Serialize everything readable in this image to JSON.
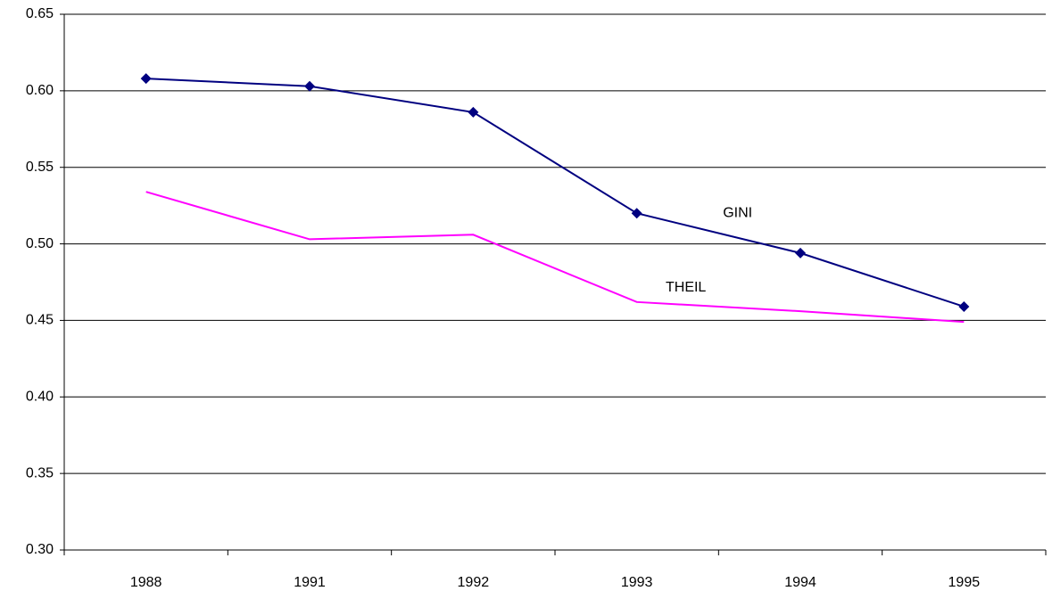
{
  "chart_data": {
    "type": "line",
    "categories": [
      "1988",
      "1991",
      "1992",
      "1993",
      "1994",
      "1995"
    ],
    "series": [
      {
        "name": "GINI",
        "color": "#000080",
        "marker": "diamond",
        "values": [
          0.608,
          0.603,
          0.586,
          0.52,
          0.494,
          0.459
        ]
      },
      {
        "name": "THEIL",
        "color": "#ff00ff",
        "marker": "none",
        "values": [
          0.534,
          0.503,
          0.506,
          0.462,
          0.456,
          0.449
        ]
      }
    ],
    "ylim": [
      0.3,
      0.65
    ],
    "yticks": [
      {
        "value": 0.3,
        "label": "0.30"
      },
      0.35,
      {
        "value": 0.4,
        "label": "0.40"
      },
      0.45,
      {
        "value": 0.5,
        "label": "0.50"
      },
      0.55,
      {
        "value": 0.6,
        "label": "0.60"
      },
      0.65
    ],
    "grid": true
  }
}
